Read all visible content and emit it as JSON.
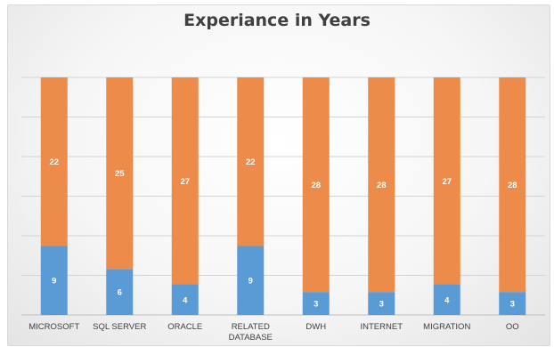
{
  "chart_data": {
    "type": "bar",
    "stacked": true,
    "title": "Experiance in Years",
    "categories": [
      "MICROSOFT",
      "SQL SERVER",
      "ORACLE",
      "RELATED DATABASE",
      "DWH",
      "INTERNET",
      "MIGRATION",
      "OO"
    ],
    "series": [
      {
        "values": [
          9,
          6,
          4,
          9,
          3,
          3,
          4,
          3
        ],
        "color": "#5b9bd5"
      },
      {
        "values": [
          22,
          25,
          27,
          22,
          28,
          28,
          27,
          28
        ],
        "color": "#ed8b4a"
      }
    ],
    "ylim": [
      0,
      31
    ],
    "grid": true,
    "legend": "none"
  }
}
